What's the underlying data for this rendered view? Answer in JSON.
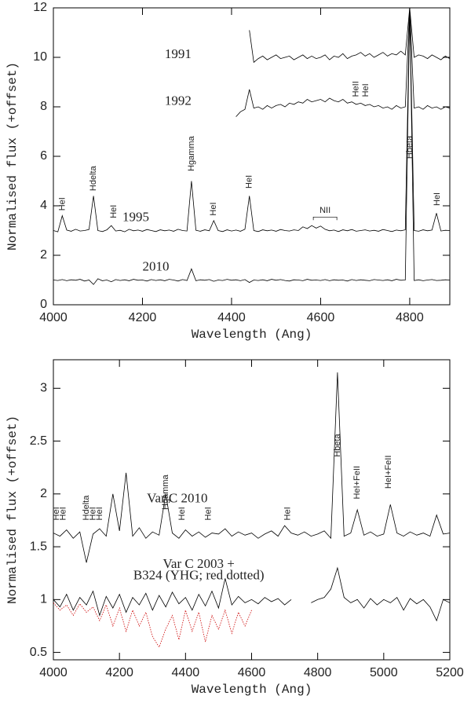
{
  "chart_data": [
    {
      "type": "line",
      "xlabel": "Wavelength (Ang)",
      "ylabel": "Normalised flux (+offset)",
      "xlim": [
        4000,
        4890
      ],
      "ylim": [
        0,
        12
      ],
      "xticks": [
        4000,
        4200,
        4400,
        4600,
        4800
      ],
      "yticks": [
        0,
        2,
        4,
        6,
        8,
        10,
        12
      ],
      "x": [
        4000,
        4010,
        4020,
        4030,
        4040,
        4050,
        4060,
        4070,
        4080,
        4090,
        4100,
        4110,
        4120,
        4130,
        4140,
        4150,
        4160,
        4170,
        4180,
        4190,
        4200,
        4210,
        4220,
        4230,
        4240,
        4250,
        4260,
        4270,
        4280,
        4290,
        4300,
        4310,
        4320,
        4330,
        4340,
        4350,
        4360,
        4370,
        4380,
        4390,
        4400,
        4410,
        4420,
        4430,
        4440,
        4450,
        4460,
        4470,
        4480,
        4490,
        4500,
        4510,
        4520,
        4530,
        4540,
        4550,
        4560,
        4570,
        4580,
        4590,
        4600,
        4610,
        4620,
        4630,
        4640,
        4650,
        4660,
        4670,
        4680,
        4690,
        4700,
        4710,
        4720,
        4730,
        4740,
        4750,
        4760,
        4770,
        4780,
        4790,
        4800,
        4810,
        4820,
        4830,
        4840,
        4850,
        4860,
        4870,
        4880,
        4890
      ],
      "series": [
        {
          "name": "1991",
          "color": "#000000",
          "values": [
            null,
            null,
            null,
            null,
            null,
            null,
            null,
            null,
            null,
            null,
            null,
            null,
            null,
            null,
            null,
            null,
            null,
            null,
            null,
            null,
            null,
            null,
            null,
            null,
            null,
            null,
            null,
            null,
            null,
            null,
            null,
            null,
            null,
            null,
            null,
            null,
            null,
            null,
            null,
            null,
            null,
            null,
            null,
            null,
            11.1,
            9.8,
            9.95,
            10.05,
            9.9,
            10.0,
            10.1,
            9.95,
            10.0,
            10.05,
            9.9,
            10.0,
            10.1,
            9.95,
            10.05,
            9.95,
            10.0,
            10.1,
            9.9,
            10.05,
            10.0,
            10.15,
            9.95,
            10.05,
            10.1,
            10.2,
            10.05,
            10.15,
            10.0,
            10.1,
            10.2,
            10.05,
            10.15,
            10.1,
            10.25,
            10.1,
            12,
            10.0,
            10.1,
            10.05,
            9.95,
            10.1,
            10.0,
            9.9,
            10.05,
            9.95
          ]
        },
        {
          "name": "1992",
          "color": "#000000",
          "values": [
            null,
            null,
            null,
            null,
            null,
            null,
            null,
            null,
            null,
            null,
            null,
            null,
            null,
            null,
            null,
            null,
            null,
            null,
            null,
            null,
            null,
            null,
            null,
            null,
            null,
            null,
            null,
            null,
            null,
            null,
            null,
            null,
            null,
            null,
            null,
            null,
            null,
            null,
            null,
            null,
            null,
            7.6,
            7.8,
            7.9,
            8.7,
            7.95,
            8.0,
            7.9,
            8.05,
            7.95,
            8.05,
            8.1,
            8.0,
            8.15,
            8.1,
            8.2,
            8.15,
            8.3,
            8.2,
            8.25,
            8.3,
            8.2,
            8.35,
            8.25,
            8.2,
            8.3,
            8.15,
            8.2,
            8.1,
            8.15,
            8.05,
            8.1,
            8.0,
            8.05,
            7.95,
            8.0,
            7.9,
            8.05,
            7.95,
            8.0,
            12,
            7.95,
            8.0,
            7.9,
            8.05,
            7.95,
            8.0,
            7.9,
            8.0,
            7.95
          ]
        },
        {
          "name": "1995",
          "color": "#000000",
          "values": [
            3.0,
            2.95,
            3.6,
            3.02,
            2.97,
            3.05,
            2.98,
            3.0,
            3.04,
            4.4,
            3.0,
            2.96,
            3.03,
            3.2,
            2.98,
            3.01,
            2.95,
            3.05,
            2.99,
            3.02,
            2.97,
            3.04,
            3.0,
            2.96,
            3.03,
            2.99,
            3.02,
            2.97,
            3.05,
            3.0,
            2.98,
            5.0,
            3.01,
            2.97,
            3.03,
            2.99,
            3.4,
            3.0,
            2.96,
            3.03,
            2.98,
            3.02,
            2.97,
            3.05,
            4.4,
            3.0,
            2.96,
            3.03,
            2.99,
            3.02,
            2.97,
            3.04,
            3.0,
            2.98,
            3.03,
            3.0,
            3.15,
            3.08,
            3.2,
            3.1,
            3.18,
            3.05,
            2.99,
            3.02,
            2.96,
            3.03,
            2.99,
            3.04,
            2.97,
            3.0,
            3.03,
            2.98,
            3.01,
            2.97,
            3.04,
            3.0,
            2.96,
            3.02,
            2.99,
            3.03,
            12,
            3.0,
            2.97,
            3.03,
            2.99,
            3.02,
            3.7,
            2.98,
            3.01,
            3.0
          ]
        },
        {
          "name": "2010",
          "color": "#000000",
          "values": [
            1.0,
            0.98,
            1.02,
            0.97,
            1.01,
            0.99,
            1.03,
            0.96,
            1.0,
            0.82,
            1.05,
            0.97,
            1.0,
            0.93,
            1.02,
            0.98,
            1.01,
            0.97,
            1.03,
            0.99,
            1.0,
            0.96,
            1.02,
            0.98,
            1.01,
            0.97,
            1.03,
            1.0,
            0.96,
            1.02,
            0.98,
            1.45,
            0.97,
            1.01,
            0.99,
            1.02,
            0.95,
            1.0,
            0.98,
            1.03,
            0.99,
            1.01,
            0.97,
            1.02,
            0.9,
            1.0,
            0.98,
            1.01,
            0.97,
            1.03,
            0.99,
            1.02,
            0.98,
            0.96,
            1.01,
            1.0,
            0.97,
            1.03,
            0.99,
            1.0,
            0.98,
            1.02,
            0.97,
            1.01,
            0.99,
            1.0,
            0.96,
            1.02,
            0.98,
            1.01,
            0.99,
            0.97,
            1.02,
            1.0,
            0.98,
            1.01,
            0.97,
            1.03,
            0.99,
            1.0,
            12,
            0.98,
            1.01,
            0.97,
            1.0,
            1.02,
            0.98,
            0.99,
            1.01,
            1.0
          ]
        }
      ],
      "annotations": [
        {
          "text": "HeI",
          "x": 4020,
          "y": 3.8,
          "rotation": 90
        },
        {
          "text": "Hdelta",
          "x": 4090,
          "y": 4.6,
          "rotation": 90
        },
        {
          "text": "HeI",
          "x": 4136,
          "y": 3.5,
          "rotation": 90
        },
        {
          "text": "Hgamma",
          "x": 4310,
          "y": 5.4,
          "rotation": 90
        },
        {
          "text": "HeI",
          "x": 4360,
          "y": 3.6,
          "rotation": 90
        },
        {
          "text": "HeI",
          "x": 4440,
          "y": 4.7,
          "rotation": 90
        },
        {
          "text": "NII",
          "x": 4610,
          "y": 3.8,
          "rotation": 0
        },
        {
          "text": "HeII",
          "x": 4680,
          "y": 8.4,
          "rotation": 90
        },
        {
          "text": "HeI",
          "x": 4702,
          "y": 8.4,
          "rotation": 90
        },
        {
          "text": "Hbeta",
          "x": 4800,
          "y": 5.9,
          "rotation": 90
        },
        {
          "text": "HeI",
          "x": 4862,
          "y": 4.0,
          "rotation": 90
        }
      ]
    },
    {
      "type": "line",
      "xlabel": "Wavelength (Ang)",
      "ylabel": "Normalised flux (+offset)",
      "xlim": [
        4000,
        5200
      ],
      "ylim": [
        0.43,
        3.27
      ],
      "xticks": [
        4000,
        4200,
        4400,
        4600,
        4800,
        5000,
        5200
      ],
      "yticks": [
        0.5,
        1,
        1.5,
        2,
        2.5,
        3
      ],
      "x": [
        4000,
        4020,
        4040,
        4060,
        4080,
        4100,
        4120,
        4140,
        4160,
        4180,
        4200,
        4220,
        4240,
        4260,
        4280,
        4300,
        4320,
        4340,
        4360,
        4380,
        4400,
        4420,
        4440,
        4460,
        4480,
        4500,
        4520,
        4540,
        4560,
        4580,
        4600,
        4620,
        4640,
        4660,
        4680,
        4700,
        4720,
        4740,
        4760,
        4780,
        4800,
        4820,
        4840,
        4860,
        4880,
        4900,
        4920,
        4940,
        4960,
        4980,
        5000,
        5020,
        5040,
        5060,
        5080,
        5100,
        5120,
        5140,
        5160,
        5180,
        5200
      ],
      "series": [
        {
          "name": "Var C 2010",
          "color": "#000000",
          "dash": "solid",
          "values": [
            1.63,
            1.6,
            1.66,
            1.58,
            1.64,
            1.35,
            1.62,
            1.67,
            1.6,
            2.0,
            1.65,
            2.2,
            1.6,
            1.68,
            1.58,
            1.64,
            1.61,
            2.0,
            1.63,
            1.58,
            1.66,
            1.6,
            1.64,
            1.59,
            1.63,
            1.62,
            1.67,
            1.6,
            1.64,
            1.61,
            1.63,
            1.58,
            1.62,
            1.65,
            1.6,
            1.7,
            1.63,
            1.61,
            1.64,
            1.6,
            1.62,
            1.65,
            1.58,
            3.15,
            1.6,
            1.63,
            1.85,
            1.61,
            1.64,
            1.6,
            1.62,
            1.9,
            1.63,
            1.6,
            1.64,
            1.61,
            1.63,
            1.6,
            1.8,
            1.62,
            1.63
          ]
        },
        {
          "name": "Var C 2003 +",
          "color": "#000000",
          "dash": "solid",
          "values": [
            1.0,
            0.93,
            1.05,
            0.9,
            1.02,
            0.95,
            1.08,
            0.85,
            1.03,
            0.92,
            1.05,
            0.88,
            1.02,
            0.95,
            1.06,
            0.9,
            1.04,
            0.93,
            1.07,
            0.96,
            1.02,
            0.9,
            1.05,
            0.94,
            1.08,
            0.92,
            1.2,
            0.95,
            1.03,
            0.97,
            1.0,
            0.96,
            1.02,
            0.98,
            1.01,
            0.95,
            1.0,
            null,
            null,
            0.97,
            1.0,
            1.02,
            1.1,
            1.3,
            1.02,
            0.97,
            1.0,
            0.92,
            1.01,
            0.95,
            1.0,
            0.97,
            1.02,
            0.9,
            1.01,
            0.96,
            1.0,
            0.93,
            0.8,
            1.0,
            0.97
          ]
        },
        {
          "name": "B324 (YHG; red dotted)",
          "color": "#cc0000",
          "dash": "dotted",
          "values": [
            0.97,
            0.9,
            0.95,
            0.85,
            0.96,
            0.88,
            0.93,
            0.8,
            0.95,
            0.75,
            0.92,
            0.7,
            0.9,
            0.75,
            0.88,
            0.65,
            0.55,
            0.72,
            0.85,
            0.62,
            0.9,
            0.7,
            0.88,
            0.6,
            0.85,
            0.72,
            0.9,
            0.68,
            0.88,
            0.75,
            0.9,
            null,
            null,
            null,
            null,
            null,
            null,
            null,
            null,
            null,
            null,
            null,
            null,
            null,
            null,
            null,
            null,
            null,
            null,
            null,
            null,
            null,
            null,
            null,
            null,
            null,
            null,
            null,
            null,
            null,
            null
          ]
        }
      ],
      "annotations": [
        {
          "text": "HeI",
          "x": 4010,
          "y": 1.75,
          "rotation": 90
        },
        {
          "text": "HeI",
          "x": 4030,
          "y": 1.75,
          "rotation": 90
        },
        {
          "text": "Hdelta",
          "x": 4100,
          "y": 1.75,
          "rotation": 90
        },
        {
          "text": "HeI",
          "x": 4120,
          "y": 1.75,
          "rotation": 90
        },
        {
          "text": "HeI",
          "x": 4140,
          "y": 1.75,
          "rotation": 90
        },
        {
          "text": "Hgamma",
          "x": 4340,
          "y": 1.85,
          "rotation": 90
        },
        {
          "text": "HeI",
          "x": 4390,
          "y": 1.75,
          "rotation": 90
        },
        {
          "text": "HeI",
          "x": 4470,
          "y": 1.75,
          "rotation": 90
        },
        {
          "text": "HeI",
          "x": 4710,
          "y": 1.75,
          "rotation": 90
        },
        {
          "text": "Hbeta",
          "x": 4860,
          "y": 2.35,
          "rotation": 90
        },
        {
          "text": "HeI+FeII",
          "x": 4920,
          "y": 1.95,
          "rotation": 90
        },
        {
          "text": "HeI+FeII",
          "x": 5015,
          "y": 2.05,
          "rotation": 90
        }
      ]
    }
  ]
}
